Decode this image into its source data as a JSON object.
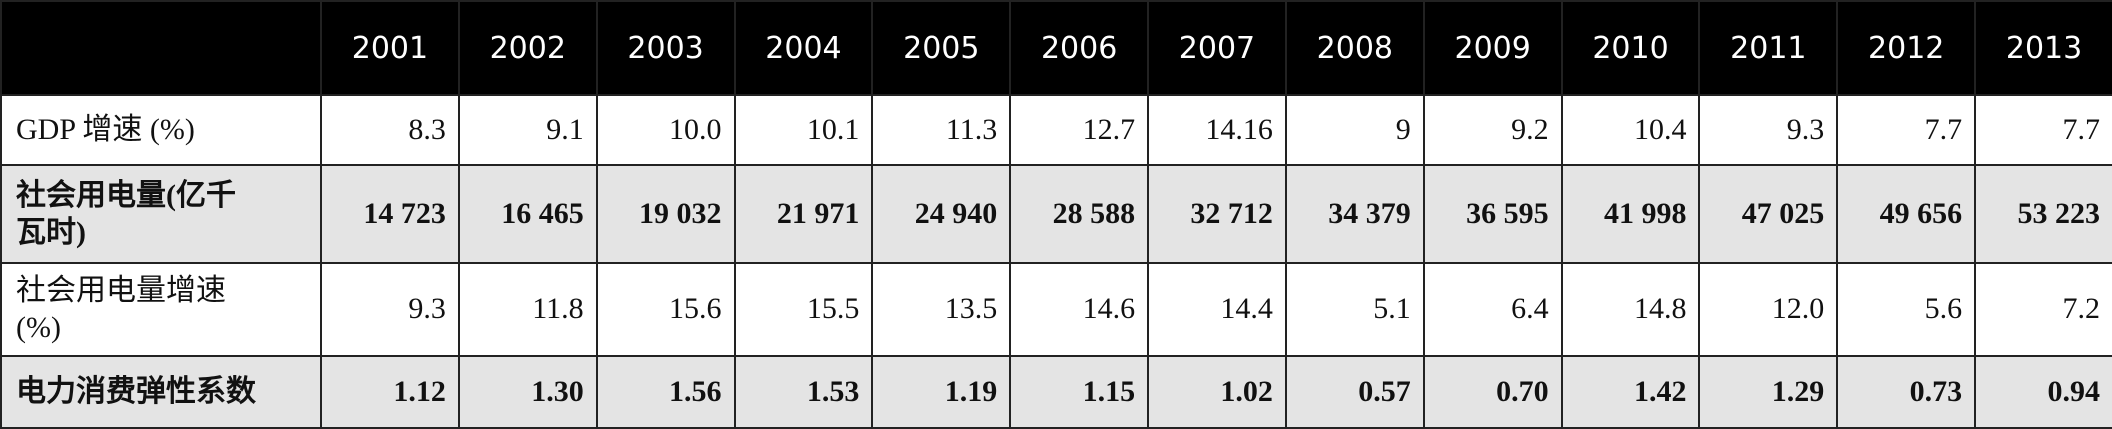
{
  "table": {
    "header": [
      "2001",
      "2002",
      "2003",
      "2004",
      "2005",
      "2006",
      "2007",
      "2008",
      "2009",
      "2010",
      "2011",
      "2012",
      "2013"
    ],
    "rows": [
      {
        "label": "GDP 增速 (%)",
        "values": [
          "8.3",
          "9.1",
          "10.0",
          "10.1",
          "11.3",
          "12.7",
          "14.16",
          "9",
          "9.2",
          "10.4",
          "9.3",
          "7.7",
          "7.7"
        ]
      },
      {
        "label": "社会用电量(亿千瓦时)",
        "values": [
          "14 723",
          "16 465",
          "19 032",
          "21 971",
          "24 940",
          "28 588",
          "32 712",
          "34 379",
          "36 595",
          "41 998",
          "47 025",
          "49 656",
          "53 223"
        ]
      },
      {
        "label": "社会用电量增速(%)",
        "values": [
          "9.3",
          "11.8",
          "15.6",
          "15.5",
          "13.5",
          "14.6",
          "14.4",
          "5.1",
          "6.4",
          "14.8",
          "12.0",
          "5.6",
          "7.2"
        ]
      },
      {
        "label": "电力消费弹性系数",
        "values": [
          "1.12",
          "1.30",
          "1.56",
          "1.53",
          "1.19",
          "1.15",
          "1.02",
          "0.57",
          "0.70",
          "1.42",
          "1.29",
          "0.73",
          "0.94"
        ]
      }
    ]
  }
}
